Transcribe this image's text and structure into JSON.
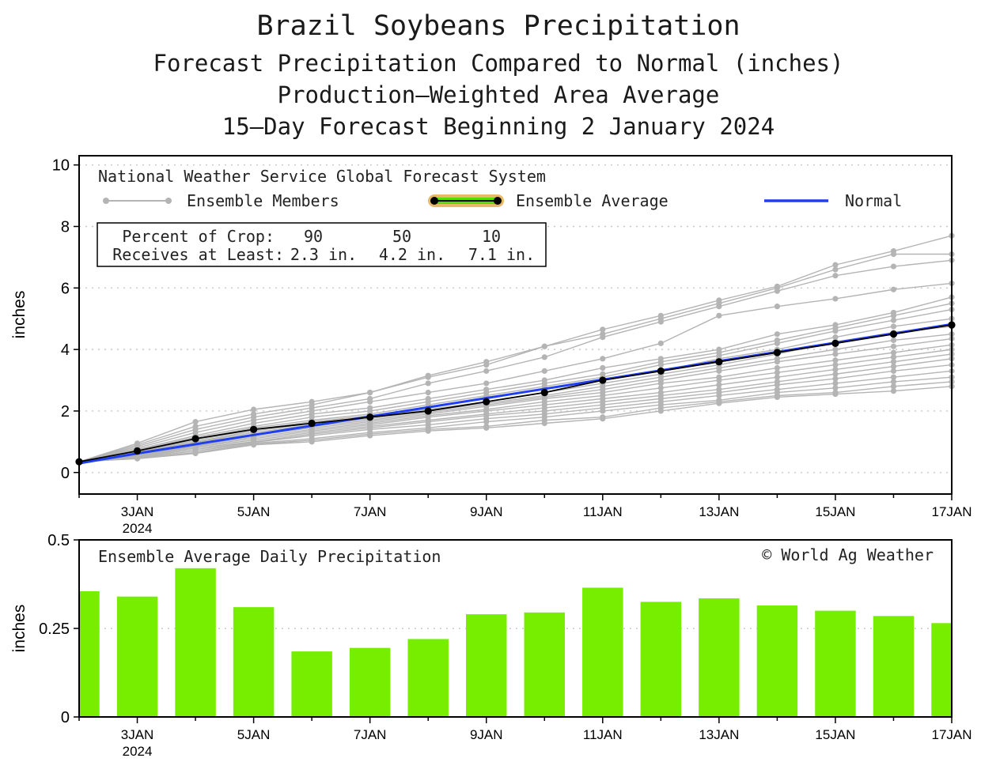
{
  "titles": {
    "line1": "Brazil Soybeans Precipitation",
    "line2": "Forecast Precipitation Compared to Normal (inches)",
    "line3": "Production—Weighted Area Average",
    "line4": "15—Day Forecast Beginning 2 January 2024"
  },
  "legend": {
    "source": "National Weather Service Global Forecast System",
    "members": "Ensemble Members",
    "average": "Ensemble Average",
    "normal": "Normal",
    "percent_label": "Percent of Crop:",
    "receives_label": "Receives at Least:",
    "percents": [
      "90",
      "50",
      "10"
    ],
    "amounts": [
      "2.3 in.",
      "4.2 in.",
      "7.1 in."
    ]
  },
  "bottom_labels": {
    "title": "Ensemble Average Daily Precipitation",
    "copyright": "© World Ag Weather"
  },
  "colors": {
    "members": "#b4b4b4",
    "average": "#000000",
    "normal": "#1f3ff0",
    "bars": "#77ee00",
    "avg_band_outer": "#e8b86a",
    "avg_band_inner": "#55dd00"
  },
  "chart_data": [
    {
      "type": "line",
      "title": "Forecast Precipitation Compared to Normal (inches)",
      "ylabel": "inches",
      "xlabel": "",
      "ylim": [
        -0.7,
        10.3
      ],
      "yticks": [
        0,
        2,
        4,
        6,
        8,
        10
      ],
      "x_days": [
        2,
        3,
        4,
        5,
        6,
        7,
        8,
        9,
        10,
        11,
        12,
        13,
        14,
        15,
        16,
        17
      ],
      "x_tick_days": [
        3,
        5,
        7,
        9,
        11,
        13,
        15,
        17
      ],
      "x_tick_labels": [
        "3JAN",
        "5JAN",
        "7JAN",
        "9JAN",
        "11JAN",
        "13JAN",
        "15JAN",
        "17JAN"
      ],
      "x_year_label": "2024",
      "xlim": [
        2,
        17
      ],
      "series": [
        {
          "name": "Ensemble Average",
          "values": [
            0.35,
            0.7,
            1.1,
            1.4,
            1.6,
            1.8,
            2.0,
            2.3,
            2.6,
            3.0,
            3.3,
            3.6,
            3.9,
            4.2,
            4.5,
            4.8
          ]
        },
        {
          "name": "Normal",
          "values": [
            0.3,
            0.62,
            0.92,
            1.22,
            1.52,
            1.82,
            2.12,
            2.42,
            2.72,
            3.02,
            3.32,
            3.62,
            3.92,
            4.22,
            4.52,
            4.82
          ]
        }
      ],
      "members": [
        [
          0.35,
          0.95,
          1.65,
          2.05,
          2.3,
          2.6,
          3.15,
          3.6,
          4.1,
          4.65,
          5.1,
          5.6,
          6.05,
          6.75,
          7.2,
          7.7
        ],
        [
          0.35,
          0.9,
          1.5,
          1.9,
          2.2,
          2.6,
          3.1,
          3.5,
          4.1,
          4.5,
          5.0,
          5.5,
          6.0,
          6.6,
          7.1,
          7.1
        ],
        [
          0.35,
          0.85,
          1.4,
          1.8,
          2.1,
          2.4,
          2.9,
          3.3,
          3.75,
          4.4,
          4.9,
          5.4,
          5.9,
          6.4,
          6.7,
          6.9
        ],
        [
          0.35,
          0.8,
          1.3,
          1.7,
          2.0,
          2.3,
          2.6,
          2.9,
          3.3,
          3.7,
          4.2,
          5.1,
          5.4,
          5.65,
          5.95,
          6.15
        ],
        [
          0.35,
          0.75,
          1.2,
          1.6,
          1.9,
          2.1,
          2.4,
          2.7,
          3.0,
          3.4,
          3.7,
          4.0,
          4.5,
          4.8,
          5.2,
          5.7
        ],
        [
          0.35,
          0.72,
          1.15,
          1.5,
          1.8,
          2.0,
          2.3,
          2.6,
          2.9,
          3.2,
          3.6,
          3.9,
          4.3,
          4.7,
          5.1,
          5.5
        ],
        [
          0.35,
          0.7,
          1.1,
          1.45,
          1.7,
          1.9,
          2.2,
          2.5,
          2.8,
          3.1,
          3.5,
          3.8,
          4.2,
          4.6,
          4.95,
          5.3
        ],
        [
          0.35,
          0.68,
          1.05,
          1.4,
          1.65,
          1.85,
          2.1,
          2.45,
          2.7,
          3.0,
          3.3,
          3.7,
          4.0,
          4.4,
          4.75,
          5.0
        ],
        [
          0.35,
          0.66,
          1.0,
          1.35,
          1.6,
          1.8,
          2.05,
          2.3,
          2.6,
          2.9,
          3.2,
          3.5,
          3.85,
          4.25,
          4.55,
          4.75
        ],
        [
          0.35,
          0.64,
          0.98,
          1.3,
          1.55,
          1.75,
          2.0,
          2.25,
          2.5,
          2.8,
          3.1,
          3.4,
          3.7,
          4.0,
          4.3,
          4.5
        ],
        [
          0.35,
          0.62,
          0.95,
          1.25,
          1.5,
          1.7,
          1.95,
          2.2,
          2.45,
          2.7,
          3.0,
          3.3,
          3.6,
          3.85,
          4.1,
          4.35
        ],
        [
          0.35,
          0.6,
          0.92,
          1.2,
          1.45,
          1.65,
          1.9,
          2.15,
          2.4,
          2.6,
          2.9,
          3.1,
          3.4,
          3.65,
          3.9,
          4.15
        ],
        [
          0.35,
          0.58,
          0.9,
          1.15,
          1.4,
          1.6,
          1.85,
          2.05,
          2.3,
          2.5,
          2.75,
          3.0,
          3.25,
          3.5,
          3.75,
          4.0
        ],
        [
          0.35,
          0.56,
          0.87,
          1.1,
          1.35,
          1.55,
          1.8,
          2.0,
          2.2,
          2.4,
          2.6,
          2.85,
          3.1,
          3.35,
          3.6,
          3.85
        ],
        [
          0.35,
          0.54,
          0.84,
          1.05,
          1.3,
          1.5,
          1.7,
          1.9,
          2.1,
          2.3,
          2.5,
          2.7,
          2.95,
          3.2,
          3.45,
          3.7
        ],
        [
          0.35,
          0.52,
          0.8,
          1.0,
          1.25,
          1.45,
          1.65,
          1.85,
          2.0,
          2.2,
          2.4,
          2.6,
          2.85,
          3.05,
          3.3,
          3.5
        ],
        [
          0.35,
          0.5,
          0.75,
          0.98,
          1.2,
          1.4,
          1.55,
          1.75,
          1.9,
          2.1,
          2.3,
          2.5,
          2.7,
          2.9,
          3.1,
          3.3
        ],
        [
          0.35,
          0.48,
          0.7,
          0.95,
          1.1,
          1.3,
          1.45,
          1.65,
          1.8,
          2.0,
          2.2,
          2.35,
          2.6,
          2.75,
          2.95,
          3.1
        ],
        [
          0.35,
          0.46,
          0.65,
          0.92,
          1.05,
          1.25,
          1.4,
          1.5,
          1.7,
          1.8,
          2.1,
          2.3,
          2.5,
          2.6,
          2.8,
          2.95
        ],
        [
          0.35,
          0.45,
          0.62,
          0.9,
          1.0,
          1.2,
          1.35,
          1.45,
          1.6,
          1.75,
          2.0,
          2.25,
          2.45,
          2.55,
          2.65,
          2.8
        ]
      ]
    },
    {
      "type": "bar",
      "title": "Ensemble Average Daily Precipitation",
      "ylabel": "inches",
      "ylim": [
        0,
        0.5
      ],
      "yticks": [
        0,
        0.25,
        0.5
      ],
      "ytick_labels": [
        "0",
        "0.25",
        "0.5"
      ],
      "x_days": [
        2,
        3,
        4,
        5,
        6,
        7,
        8,
        9,
        10,
        11,
        12,
        13,
        14,
        15,
        16,
        17
      ],
      "values": [
        0.355,
        0.34,
        0.42,
        0.31,
        0.185,
        0.195,
        0.22,
        0.29,
        0.295,
        0.365,
        0.325,
        0.335,
        0.315,
        0.3,
        0.285,
        0.265
      ]
    }
  ]
}
